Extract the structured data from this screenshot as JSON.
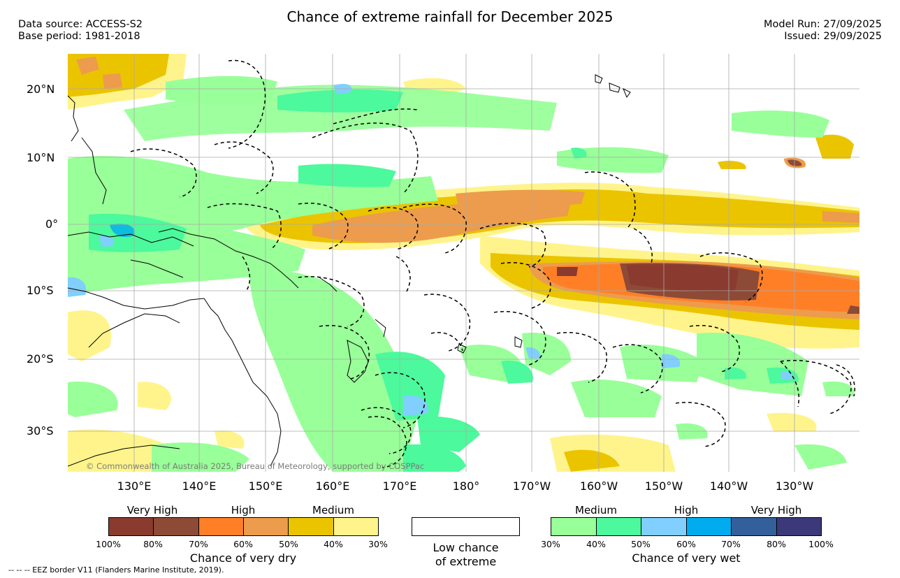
{
  "header": {
    "title": "Chance of extreme rainfall for December 2025",
    "data_source": "Data source: ACCESS-S2",
    "base_period": "Base period: 1981-2018",
    "model_run": "Model Run: 27/09/2025",
    "issued": "Issued: 29/09/2025"
  },
  "map": {
    "lat_labels": [
      "20°N",
      "10°N",
      "0°",
      "10°S",
      "20°S",
      "30°S"
    ],
    "lon_labels": [
      "130°E",
      "140°E",
      "150°E",
      "160°E",
      "170°E",
      "180°",
      "170°W",
      "160°W",
      "150°W",
      "140°W",
      "130°W"
    ],
    "copyright": "© Commonwealth of Australia 2025, Bureau of Meteorology, supported by COSPPac"
  },
  "legend": {
    "dry": {
      "categories": [
        "Very High",
        "High",
        "Medium"
      ],
      "colors": [
        "#8a3a2e",
        "#8d4a36",
        "#ff7f27",
        "#ec9c4c",
        "#ebc400",
        "#fff48c"
      ],
      "ticks": [
        "100%",
        "80%",
        "70%",
        "60%",
        "50%",
        "40%",
        "30%"
      ],
      "title": "Chance of very dry"
    },
    "low": {
      "line1": "Low chance",
      "line2": "of extreme"
    },
    "wet": {
      "categories": [
        "Medium",
        "High",
        "Very High"
      ],
      "colors": [
        "#99ff99",
        "#4cf99c",
        "#80cffe",
        "#00acee",
        "#335f9a",
        "#3b3979"
      ],
      "ticks": [
        "30%",
        "40%",
        "50%",
        "60%",
        "70%",
        "80%",
        "100%"
      ],
      "title": "Chance of very wet"
    }
  },
  "footnote": "--  --  -- EEZ border V11 (Flanders Marine Institute, 2019)."
}
